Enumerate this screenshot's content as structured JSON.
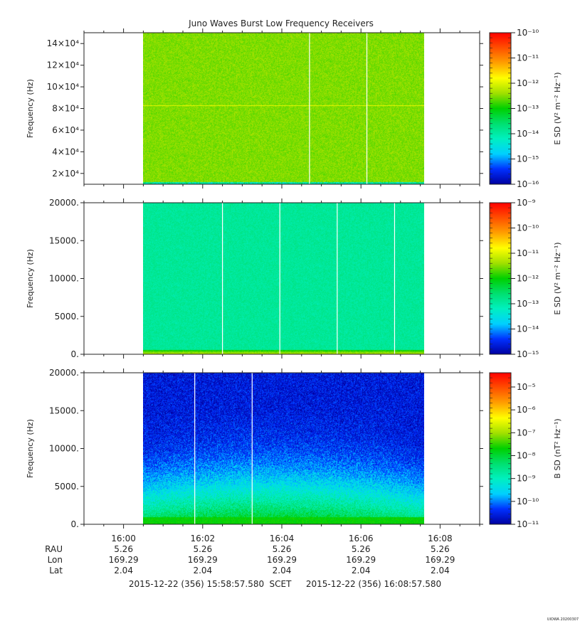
{
  "title": "Juno Waves Burst Low Frequency Receivers",
  "footer_label": "UIOWA 20200307",
  "colors": {
    "colormap": [
      "#0000a0",
      "#0030ff",
      "#00d0ff",
      "#00f0c0",
      "#00e070",
      "#00d000",
      "#a0e000",
      "#ffff00",
      "#ffa000",
      "#ff5000",
      "#ff0000"
    ]
  },
  "chart_data": [
    {
      "type": "heatmap",
      "ylabel": "Frequency (Hz)",
      "yticks": [
        "2×10⁴",
        "4×10⁴",
        "6×10⁴",
        "8×10⁴",
        "10×10⁴",
        "12×10⁴",
        "14×10⁴"
      ],
      "ytick_values": [
        20000,
        40000,
        60000,
        80000,
        100000,
        120000,
        140000
      ],
      "ylim": [
        10000,
        150000
      ],
      "data_span_minutes": [
        0.5,
        7.6
      ],
      "gap_lines_minutes": [
        4.7,
        6.15
      ],
      "colorbar_label": "E SD (V² m⁻² Hz⁻¹)",
      "colorbar_ticks": [
        "10⁻¹⁰",
        "10⁻¹¹",
        "10⁻¹²",
        "10⁻¹³",
        "10⁻¹⁴",
        "10⁻¹⁵",
        "10⁻¹⁶"
      ],
      "colorbar_range": [
        -16,
        -10
      ],
      "field_level": 0.58,
      "line_feature_hz": 83000
    },
    {
      "type": "heatmap",
      "ylabel": "Frequency (Hz)",
      "yticks": [
        "0.",
        "5000.",
        "10000.",
        "15000.",
        "20000."
      ],
      "ytick_values": [
        0,
        5000,
        10000,
        15000,
        20000
      ],
      "ylim": [
        0,
        20000
      ],
      "data_span_minutes": [
        0.5,
        7.6
      ],
      "gap_lines_minutes": [
        2.5,
        3.95,
        5.4,
        6.85
      ],
      "colorbar_label": "E SD (V² m⁻² Hz⁻¹)",
      "colorbar_ticks": [
        "10⁻⁹",
        "10⁻¹⁰",
        "10⁻¹¹",
        "10⁻¹²",
        "10⁻¹³",
        "10⁻¹⁴",
        "10⁻¹⁵"
      ],
      "colorbar_range": [
        -15,
        -9
      ],
      "field_level": 0.35,
      "low_band_hz": 600
    },
    {
      "type": "heatmap",
      "ylabel": "Frequency (Hz)",
      "yticks": [
        "0.",
        "5000.",
        "10000.",
        "15000.",
        "20000."
      ],
      "ytick_values": [
        0,
        5000,
        10000,
        15000,
        20000
      ],
      "ylim": [
        0,
        20000
      ],
      "data_span_minutes": [
        0.5,
        7.6
      ],
      "gap_lines_minutes": [
        1.8,
        3.25
      ],
      "colorbar_label": "B SD (nT² Hz⁻¹)",
      "colorbar_ticks": [
        "10⁻⁵",
        "10⁻⁶",
        "10⁻⁷",
        "10⁻⁸",
        "10⁻⁹",
        "10⁻¹⁰",
        "10⁻¹¹"
      ],
      "colorbar_range": [
        -11,
        -4.5
      ],
      "field_level": 0.1,
      "low_band_hz": 1000
    }
  ],
  "x_axis": {
    "xlim_minutes": [
      -1,
      9
    ],
    "tick_values": [
      0,
      2,
      4,
      6,
      8
    ],
    "tick_labels": [
      "16:00",
      "16:02",
      "16:04",
      "16:06",
      "16:08"
    ],
    "rows": [
      {
        "label": "RAU",
        "values": [
          "5.26",
          "5.26",
          "5.26",
          "5.26",
          "5.26"
        ]
      },
      {
        "label": "Lon",
        "values": [
          "169.29",
          "169.29",
          "169.29",
          "169.29",
          "169.29"
        ]
      },
      {
        "label": "Lat",
        "values": [
          "2.04",
          "2.04",
          "2.04",
          "2.04",
          "2.04"
        ]
      }
    ],
    "start_time": "2015-12-22 (356) 15:58:57.580",
    "scet_label": "SCET",
    "end_time": "2015-12-22 (356) 16:08:57.580"
  }
}
